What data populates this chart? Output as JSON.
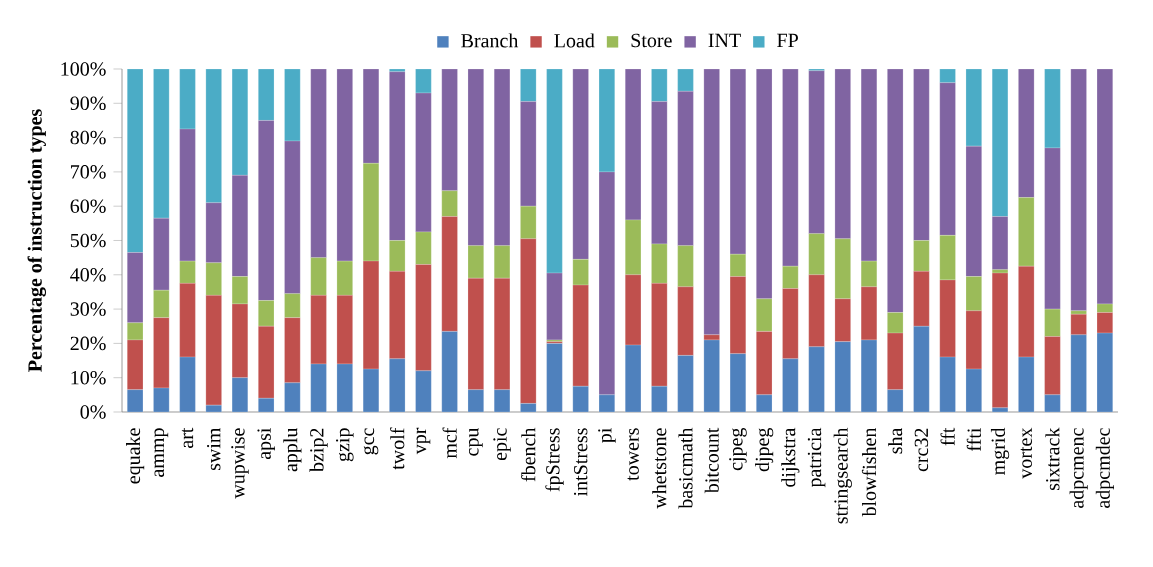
{
  "chart_data": {
    "type": "bar",
    "stacked": true,
    "ylabel": "Percentage of instruction types",
    "categories": [
      "equake",
      "ammp",
      "art",
      "swim",
      "wupwise",
      "apsi",
      "applu",
      "bzip2",
      "gzip",
      "gcc",
      "twolf",
      "vpr",
      "mcf",
      "cpu",
      "epic",
      "fbench",
      "fpStress",
      "intStress",
      "pi",
      "towers",
      "whetstone",
      "basicmath",
      "bitcount",
      "cjpeg",
      "djpeg",
      "dijkstra",
      "patricia",
      "stringsearch",
      "blowfishen",
      "sha",
      "crc32",
      "fft",
      "ffti",
      "mgrid",
      "vortex",
      "sixtrack",
      "adpcmenc",
      "adpcmdec"
    ],
    "series": [
      {
        "name": "Branch",
        "color": "#4f81bd",
        "values": [
          6.5,
          7,
          16,
          2,
          10,
          4,
          8.5,
          14,
          14,
          12.5,
          15.5,
          12,
          23.5,
          6.5,
          6.5,
          2.5,
          20,
          7.5,
          5,
          19.5,
          7.5,
          16.5,
          21,
          17,
          5,
          15.5,
          19,
          20.5,
          21,
          6.5,
          25,
          16,
          12.5,
          1.2,
          16,
          5,
          22.5,
          23
        ]
      },
      {
        "name": "Load",
        "color": "#c0504d",
        "values": [
          14.5,
          20.5,
          21.5,
          32,
          21.5,
          21,
          19,
          20,
          20,
          31.5,
          25.5,
          31,
          33.5,
          32.5,
          32.5,
          48,
          0.5,
          29.5,
          0,
          20.5,
          30,
          20,
          1.5,
          22.5,
          18.5,
          20.5,
          21,
          12.5,
          15.5,
          16.5,
          16,
          22.5,
          17,
          39.3,
          26.5,
          17,
          6,
          6
        ]
      },
      {
        "name": "Store",
        "color": "#9bbb59",
        "values": [
          5,
          8,
          6.5,
          9.5,
          8,
          7.5,
          7,
          11,
          10,
          28.5,
          9,
          9.5,
          7.5,
          9.5,
          9.5,
          9.5,
          0.5,
          7.5,
          0,
          16,
          11.5,
          12,
          0,
          6.5,
          9.5,
          6.5,
          12,
          17.5,
          7.5,
          6,
          9,
          13,
          10,
          1,
          20,
          8,
          1,
          2.5
        ]
      },
      {
        "name": "INT",
        "color": "#8064a2",
        "values": [
          20.5,
          21,
          38.5,
          17.5,
          29.5,
          52.5,
          44.5,
          55,
          56,
          27.5,
          49.2,
          40.5,
          35.5,
          51.5,
          51.5,
          30.5,
          19.5,
          55.5,
          65,
          44,
          41.5,
          45,
          77.5,
          54,
          67,
          57.5,
          47.5,
          49.5,
          56,
          71,
          50,
          44.5,
          38,
          15.5,
          37.5,
          47,
          70.5,
          68.5
        ]
      },
      {
        "name": "FP",
        "color": "#4bacc6",
        "values": [
          53.5,
          43.5,
          17.5,
          39,
          31,
          15,
          21,
          0,
          0,
          0,
          0.8,
          7,
          0,
          0,
          0,
          9.5,
          59.5,
          0,
          30,
          0,
          9.5,
          6.5,
          0,
          0,
          0,
          0,
          0.5,
          0,
          0,
          0,
          0,
          4,
          22.5,
          43,
          0,
          23,
          0,
          0
        ]
      }
    ],
    "ylim": [
      0,
      100
    ],
    "yticks": [
      {
        "value": 0,
        "label": "0%"
      },
      {
        "value": 10,
        "label": "10%"
      },
      {
        "value": 20,
        "label": "20%"
      },
      {
        "value": 30,
        "label": "30%"
      },
      {
        "value": 40,
        "label": "40%"
      },
      {
        "value": 50,
        "label": "50%"
      },
      {
        "value": 60,
        "label": "60%"
      },
      {
        "value": 70,
        "label": "70%"
      },
      {
        "value": 80,
        "label": "80%"
      },
      {
        "value": 90,
        "label": "90%"
      },
      {
        "value": 100,
        "label": "100%"
      }
    ],
    "legend": "top",
    "grid": false
  }
}
